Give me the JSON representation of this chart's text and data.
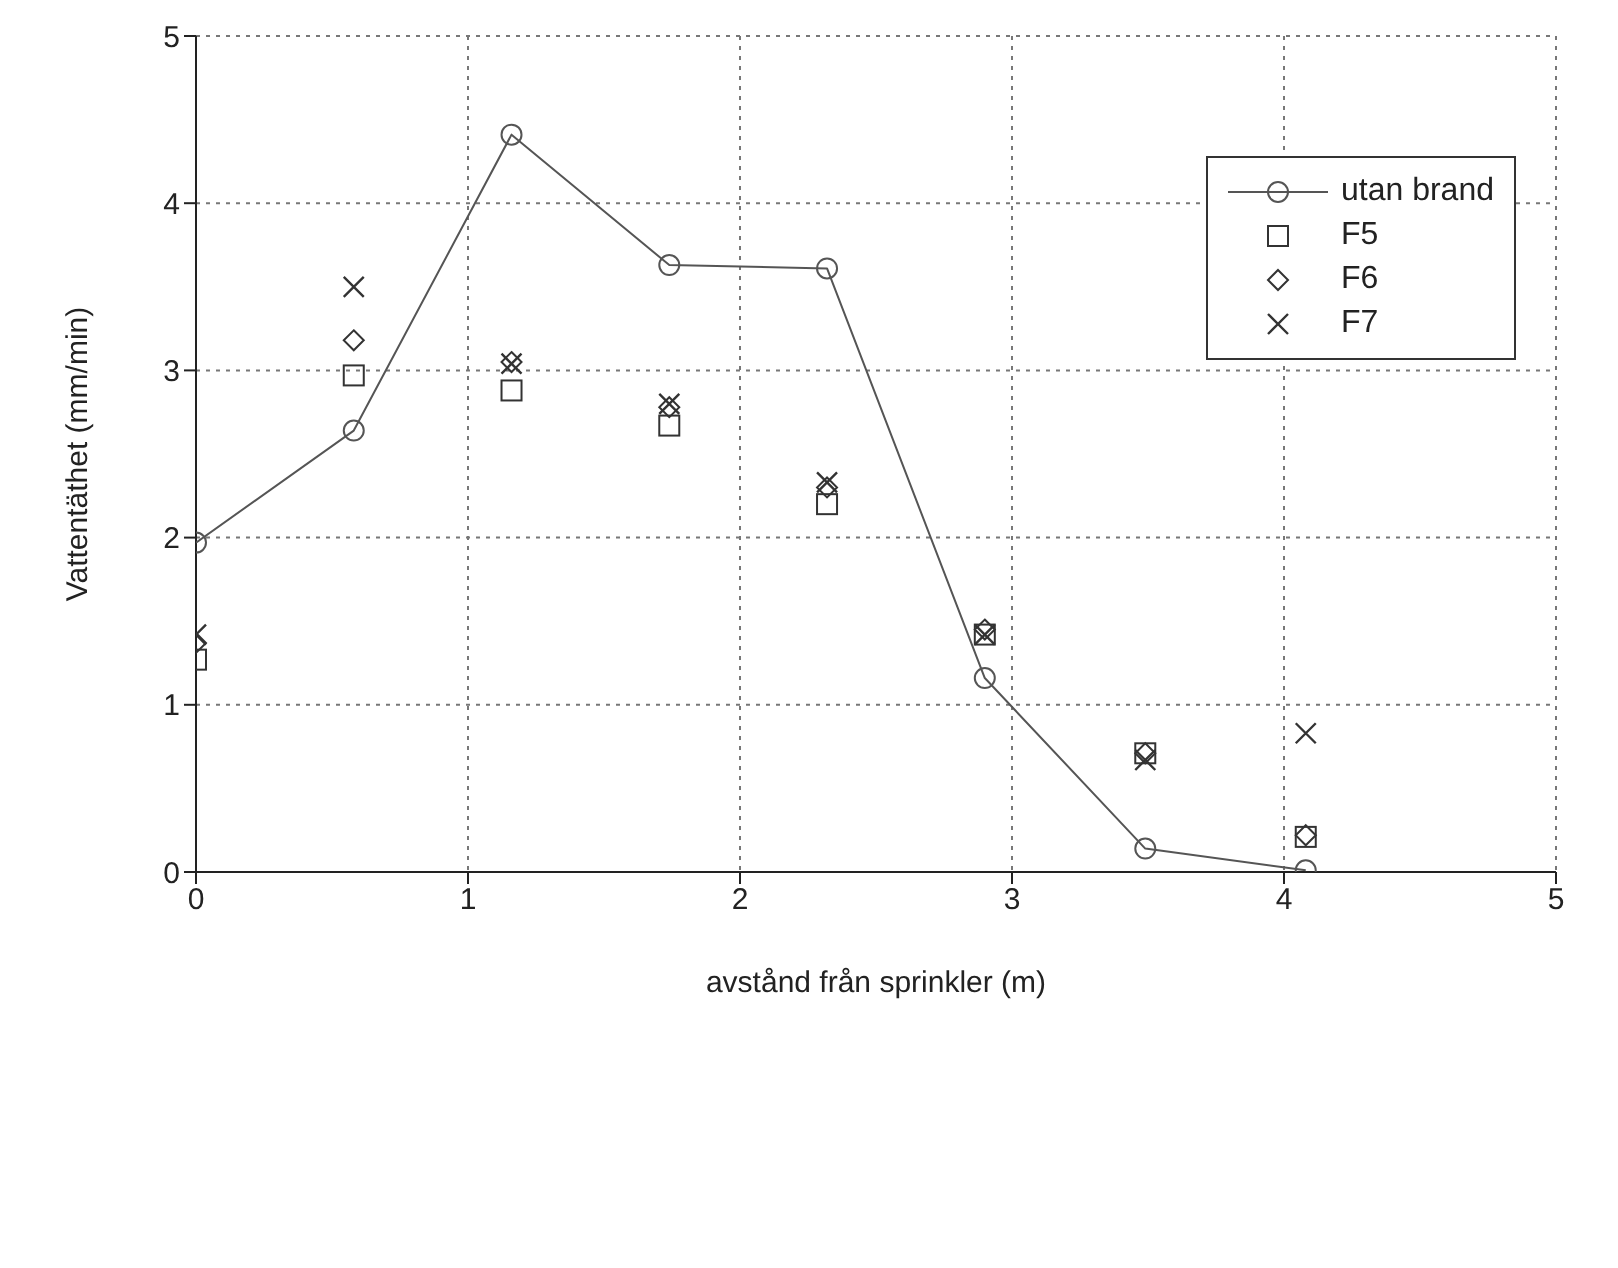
{
  "chart_data": {
    "type": "scatter",
    "xlabel": "avstånd från sprinkler (m)",
    "ylabel": "Vattentäthet (mm/min)",
    "x": [
      0,
      0.58,
      1.16,
      1.74,
      2.32,
      2.9,
      3.49,
      4.08
    ],
    "series": [
      {
        "name": "utan brand",
        "type": "line",
        "marker": "circle",
        "color": "#555555",
        "values": [
          1.97,
          2.64,
          4.41,
          3.63,
          3.61,
          1.16,
          0.14,
          0.01
        ]
      },
      {
        "name": "F5",
        "marker": "square",
        "color": "#333333",
        "values": [
          1.27,
          2.97,
          2.88,
          2.67,
          2.2,
          1.42,
          0.71,
          0.21
        ]
      },
      {
        "name": "F6",
        "marker": "diamond",
        "color": "#333333",
        "values": [
          1.37,
          3.18,
          3.05,
          2.78,
          2.3,
          1.45,
          0.71,
          0.22
        ]
      },
      {
        "name": "F7",
        "marker": "cross",
        "color": "#333333",
        "values": [
          1.42,
          3.5,
          3.04,
          2.8,
          2.33,
          1.42,
          0.67,
          0.83
        ]
      }
    ],
    "xlim": [
      0,
      5
    ],
    "xticks": [
      0,
      1,
      2,
      3,
      4,
      5
    ],
    "ylim": [
      0,
      5
    ],
    "yticks": [
      0,
      1,
      2,
      3,
      4,
      5
    ],
    "grid": true,
    "legend": "top right"
  }
}
